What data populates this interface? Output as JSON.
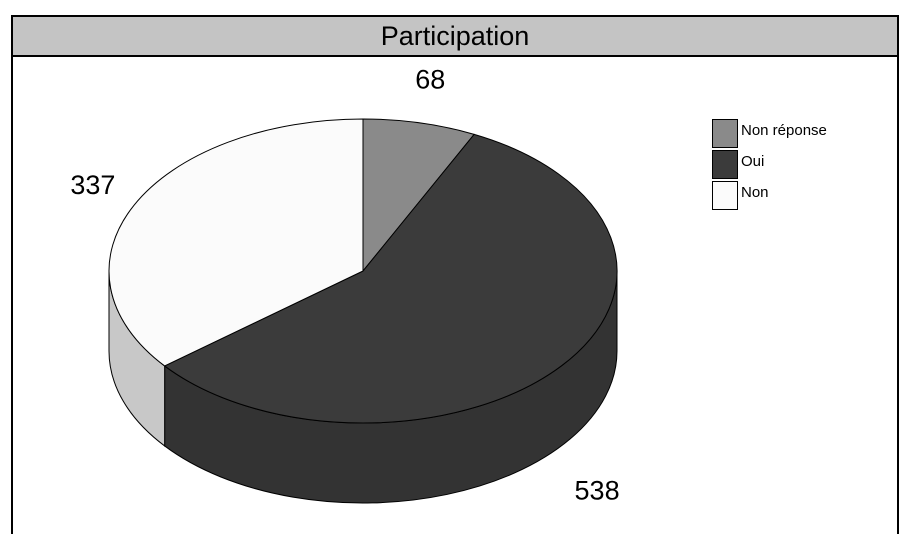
{
  "chart_data": {
    "type": "pie",
    "title": "Participation",
    "categories": [
      "Non réponse",
      "Oui",
      "Non"
    ],
    "values": [
      68,
      538,
      337
    ],
    "data_labels": [
      "68",
      "538",
      "337"
    ],
    "colors": {
      "Non réponse": "#8a8a8a",
      "Oui": "#3b3b3b",
      "Non": "#fbfbfb"
    },
    "side_colors": {
      "Non réponse": "#5e5e5e",
      "Oui": "#333333",
      "Non": "#c8c8c8"
    },
    "style": "3d",
    "legend_position": "top-right"
  }
}
